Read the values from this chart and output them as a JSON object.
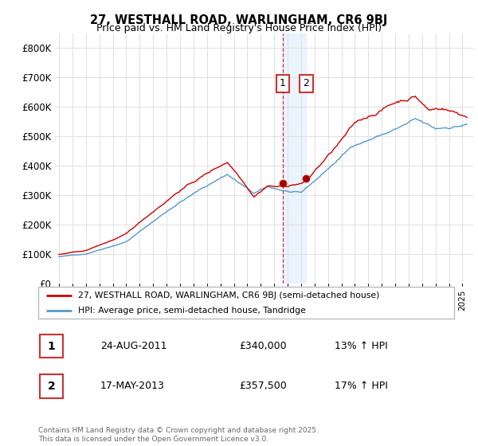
{
  "title_line1": "27, WESTHALL ROAD, WARLINGHAM, CR6 9BJ",
  "title_line2": "Price paid vs. HM Land Registry's House Price Index (HPI)",
  "ylim": [
    0,
    850000
  ],
  "yticks": [
    0,
    100000,
    200000,
    300000,
    400000,
    500000,
    600000,
    700000,
    800000
  ],
  "ytick_labels": [
    "£0",
    "£100K",
    "£200K",
    "£300K",
    "£400K",
    "£500K",
    "£600K",
    "£700K",
    "£800K"
  ],
  "background_color": "#ffffff",
  "grid_color": "#e0e0e0",
  "line1_color": "#cc0000",
  "line2_color": "#5599cc",
  "sale1_x": 2011.647,
  "sale1_y": 340000,
  "sale2_x": 2013.378,
  "sale2_y": 357500,
  "vline_color": "#cc3333",
  "vband_color": "#ddeeff",
  "legend_line1": "27, WESTHALL ROAD, WARLINGHAM, CR6 9BJ (semi-detached house)",
  "legend_line2": "HPI: Average price, semi-detached house, Tandridge",
  "table_row1_num": "1",
  "table_row1_date": "24-AUG-2011",
  "table_row1_price": "£340,000",
  "table_row1_hpi": "13% ↑ HPI",
  "table_row2_num": "2",
  "table_row2_date": "17-MAY-2013",
  "table_row2_price": "£357,500",
  "table_row2_hpi": "17% ↑ HPI",
  "footer": "Contains HM Land Registry data © Crown copyright and database right 2025.\nThis data is licensed under the Open Government Licence v3.0.",
  "xmin": 1994.7,
  "xmax": 2025.8
}
